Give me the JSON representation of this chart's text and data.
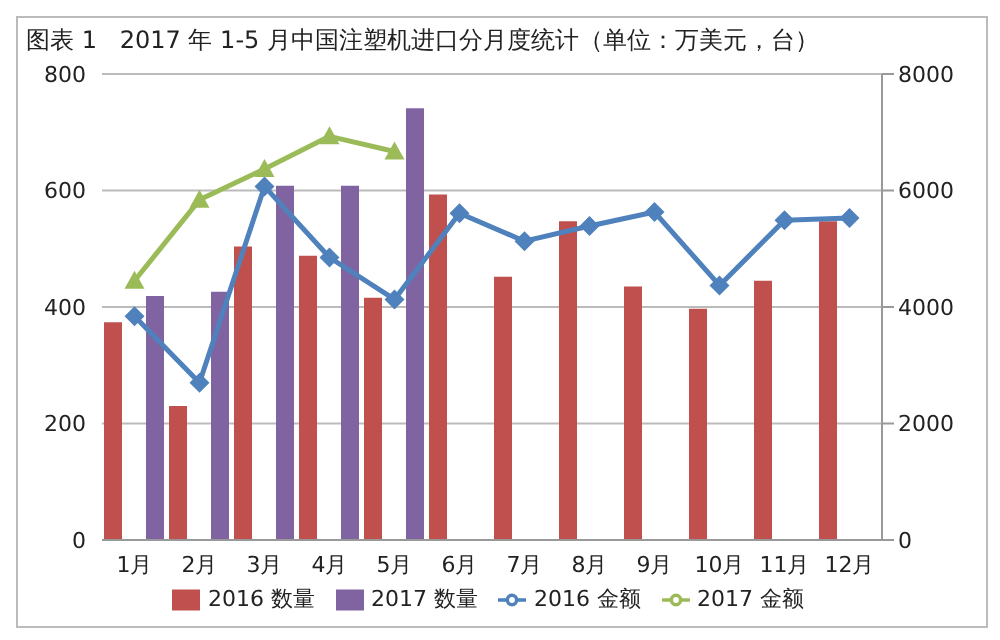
{
  "chart_data": {
    "type": "bar",
    "title": "图表 1   2017 年 1-5 月中国注塑机进口分月度统计（单位：万美元，台）",
    "categories": [
      "1月",
      "2月",
      "3月",
      "4月",
      "5月",
      "6月",
      "7月",
      "8月",
      "9月",
      "10月",
      "11月",
      "12月"
    ],
    "series": [
      {
        "name": "2016 数量",
        "color": "#c0504d",
        "values": [
          374,
          230,
          504,
          488,
          416,
          593,
          452,
          547,
          435,
          397,
          445,
          547
        ]
      },
      {
        "name": "2017 数量",
        "color": "#8064a2",
        "values": [
          419,
          426,
          608,
          608,
          741,
          null,
          null,
          null,
          null,
          null,
          null,
          null
        ]
      },
      {
        "name": "2016 金额",
        "type": "line",
        "axis": "y2",
        "marker": "diamond",
        "color": "#4f81bd",
        "values": [
          3840,
          2700,
          6070,
          4850,
          4130,
          5610,
          5130,
          5390,
          5630,
          4370,
          5490,
          5530
        ]
      },
      {
        "name": "2017 金额",
        "type": "line",
        "axis": "y2",
        "marker": "triangle",
        "color": "#9bbb59",
        "values": [
          4450,
          5840,
          6370,
          6930,
          6670,
          null,
          null,
          null,
          null,
          null,
          null,
          null
        ]
      }
    ],
    "ylim": [
      0,
      800
    ],
    "yticks": [
      0,
      200,
      400,
      600,
      800
    ],
    "y2lim": [
      0,
      8000
    ],
    "y2ticks": [
      0,
      2000,
      4000,
      6000,
      8000
    ],
    "grid": "y",
    "legend": "bottom"
  }
}
